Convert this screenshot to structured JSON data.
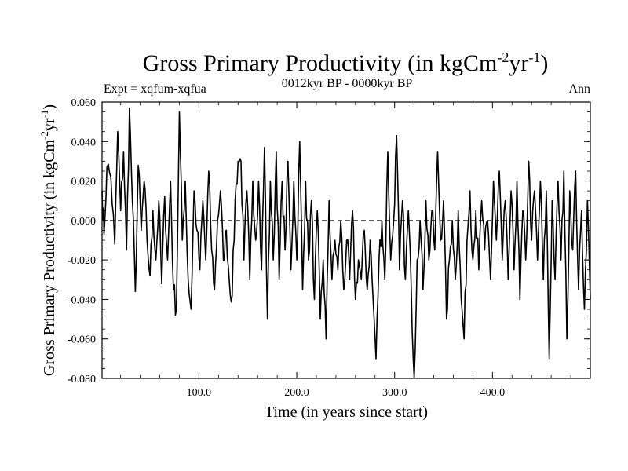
{
  "chart_data": {
    "type": "line",
    "title": {
      "main": "Gross Primary Productivity (in kgCm",
      "sup1": "-2",
      "mid": "yr",
      "sup2": "-1",
      "end": ")"
    },
    "subtitle_left": "Expt = xqfum-xqfua",
    "subtitle_center": "0012kyr BP - 0000kyr BP",
    "subtitle_right": "Ann",
    "xlabel": "Time (in years since start)",
    "ylabel": {
      "main": "Gross Primary Productivity (in kgCm",
      "sup1": "-2",
      "mid": "yr",
      "sup2": "-1",
      "end": ")"
    },
    "xlim": [
      1,
      500
    ],
    "ylim": [
      -0.08,
      0.06
    ],
    "xticks": [
      {
        "value": 100,
        "label": "100.0"
      },
      {
        "value": 200,
        "label": "200.0"
      },
      {
        "value": 300,
        "label": "300.0"
      },
      {
        "value": 400,
        "label": "400.0"
      }
    ],
    "yticks": [
      {
        "value": 0.06,
        "label": "0.060"
      },
      {
        "value": 0.04,
        "label": "0.040"
      },
      {
        "value": 0.02,
        "label": "0.020"
      },
      {
        "value": 0.0,
        "label": "0.000"
      },
      {
        "value": -0.02,
        "label": "-0.020"
      },
      {
        "value": -0.04,
        "label": "-0.040"
      },
      {
        "value": -0.06,
        "label": "-0.060"
      },
      {
        "value": -0.08,
        "label": "-0.080"
      }
    ],
    "reference_line": {
      "y": 0.0,
      "style": "dashed"
    },
    "anchors": [
      [
        1,
        0.015
      ],
      [
        3,
        -0.007
      ],
      [
        6,
        0.027
      ],
      [
        10,
        0.022
      ],
      [
        14,
        -0.012
      ],
      [
        17,
        0.045
      ],
      [
        20,
        0.005
      ],
      [
        23,
        0.035
      ],
      [
        26,
        -0.015
      ],
      [
        29,
        0.057
      ],
      [
        32,
        0.01
      ],
      [
        35,
        -0.036
      ],
      [
        38,
        0.028
      ],
      [
        41,
        -0.005
      ],
      [
        44,
        0.02
      ],
      [
        47,
        -0.01
      ],
      [
        50,
        -0.028
      ],
      [
        53,
        0.005
      ],
      [
        56,
        -0.02
      ],
      [
        59,
        0.01
      ],
      [
        62,
        -0.032
      ],
      [
        65,
        0.012
      ],
      [
        68,
        -0.02
      ],
      [
        71,
        0.02
      ],
      [
        74,
        -0.035
      ],
      [
        77,
        -0.045
      ],
      [
        80,
        0.055
      ],
      [
        83,
        -0.01
      ],
      [
        86,
        0.02
      ],
      [
        89,
        -0.03
      ],
      [
        92,
        -0.045
      ],
      [
        95,
        0.015
      ],
      [
        98,
        -0.005
      ],
      [
        101,
        -0.025
      ],
      [
        104,
        0.01
      ],
      [
        107,
        -0.02
      ],
      [
        110,
        0.025
      ],
      [
        113,
        -0.015
      ],
      [
        116,
        -0.035
      ],
      [
        119,
        0.0
      ],
      [
        122,
        0.015
      ],
      [
        125,
        -0.02
      ],
      [
        128,
        -0.005
      ],
      [
        131,
        -0.03
      ],
      [
        134,
        -0.038
      ],
      [
        137,
        0.01
      ],
      [
        140,
        0.03
      ],
      [
        143,
        0.03
      ],
      [
        146,
        -0.02
      ],
      [
        149,
        0.015
      ],
      [
        152,
        -0.03
      ],
      [
        155,
        0.02
      ],
      [
        158,
        -0.01
      ],
      [
        161,
        0.02
      ],
      [
        164,
        -0.025
      ],
      [
        167,
        0.037
      ],
      [
        170,
        -0.05
      ],
      [
        173,
        0.02
      ],
      [
        176,
        -0.02
      ],
      [
        179,
        0.035
      ],
      [
        182,
        -0.03
      ],
      [
        185,
        0.02
      ],
      [
        188,
        -0.015
      ],
      [
        191,
        0.03
      ],
      [
        194,
        -0.025
      ],
      [
        197,
        0.02
      ],
      [
        200,
        -0.02
      ],
      [
        203,
        0.04
      ],
      [
        206,
        -0.035
      ],
      [
        209,
        0.02
      ],
      [
        212,
        -0.02
      ],
      [
        215,
        0.01
      ],
      [
        218,
        -0.04
      ],
      [
        221,
        0.005
      ],
      [
        224,
        -0.05
      ],
      [
        227,
        -0.02
      ],
      [
        230,
        -0.06
      ],
      [
        233,
        0.01
      ],
      [
        236,
        -0.03
      ],
      [
        239,
        -0.01
      ],
      [
        242,
        -0.025
      ],
      [
        245,
        0.0
      ],
      [
        248,
        -0.035
      ],
      [
        251,
        -0.01
      ],
      [
        254,
        -0.03
      ],
      [
        257,
        0.005
      ],
      [
        260,
        -0.04
      ],
      [
        263,
        -0.02
      ],
      [
        266,
        -0.03
      ],
      [
        269,
        -0.005
      ],
      [
        272,
        -0.035
      ],
      [
        275,
        -0.01
      ],
      [
        278,
        -0.04
      ],
      [
        281,
        -0.07
      ],
      [
        284,
        -0.02
      ],
      [
        287,
        0.0
      ],
      [
        290,
        -0.03
      ],
      [
        293,
        0.035
      ],
      [
        296,
        -0.02
      ],
      [
        299,
        0.0
      ],
      [
        302,
        0.043
      ],
      [
        305,
        -0.025
      ],
      [
        308,
        0.01
      ],
      [
        311,
        -0.03
      ],
      [
        314,
        0.005
      ],
      [
        317,
        -0.035
      ],
      [
        320,
        -0.08
      ],
      [
        323,
        -0.02
      ],
      [
        326,
        0.0
      ],
      [
        329,
        -0.035
      ],
      [
        332,
        0.01
      ],
      [
        335,
        -0.02
      ],
      [
        338,
        0.005
      ],
      [
        341,
        -0.015
      ],
      [
        344,
        0.035
      ],
      [
        347,
        -0.01
      ],
      [
        350,
        0.01
      ],
      [
        353,
        -0.05
      ],
      [
        356,
        -0.02
      ],
      [
        359,
        0.0
      ],
      [
        362,
        -0.03
      ],
      [
        365,
        0.005
      ],
      [
        368,
        -0.04
      ],
      [
        371,
        -0.06
      ],
      [
        374,
        -0.01
      ],
      [
        377,
        0.015
      ],
      [
        380,
        -0.02
      ],
      [
        383,
        0.005
      ],
      [
        386,
        -0.025
      ],
      [
        389,
        0.01
      ],
      [
        392,
        -0.015
      ],
      [
        395,
        0.0
      ],
      [
        398,
        -0.03
      ],
      [
        401,
        0.02
      ],
      [
        404,
        -0.01
      ],
      [
        407,
        0.025
      ],
      [
        410,
        -0.02
      ],
      [
        413,
        0.01
      ],
      [
        416,
        -0.03
      ],
      [
        419,
        0.015
      ],
      [
        422,
        -0.025
      ],
      [
        425,
        0.02
      ],
      [
        428,
        -0.04
      ],
      [
        431,
        0.005
      ],
      [
        434,
        -0.02
      ],
      [
        437,
        0.03
      ],
      [
        440,
        -0.01
      ],
      [
        443,
        0.015
      ],
      [
        446,
        -0.02
      ],
      [
        449,
        0.02
      ],
      [
        452,
        -0.03
      ],
      [
        455,
        0.015
      ],
      [
        458,
        -0.07
      ],
      [
        461,
        0.01
      ],
      [
        464,
        -0.03
      ],
      [
        467,
        0.02
      ],
      [
        470,
        -0.02
      ],
      [
        473,
        0.025
      ],
      [
        476,
        -0.06
      ],
      [
        479,
        0.015
      ],
      [
        482,
        -0.015
      ],
      [
        485,
        0.025
      ],
      [
        488,
        -0.035
      ],
      [
        491,
        0.005
      ],
      [
        494,
        -0.045
      ],
      [
        497,
        0.01
      ],
      [
        500,
        -0.04
      ]
    ]
  },
  "colors": {
    "background": "#ffffff",
    "line": "#000000",
    "axis": "#000000"
  }
}
